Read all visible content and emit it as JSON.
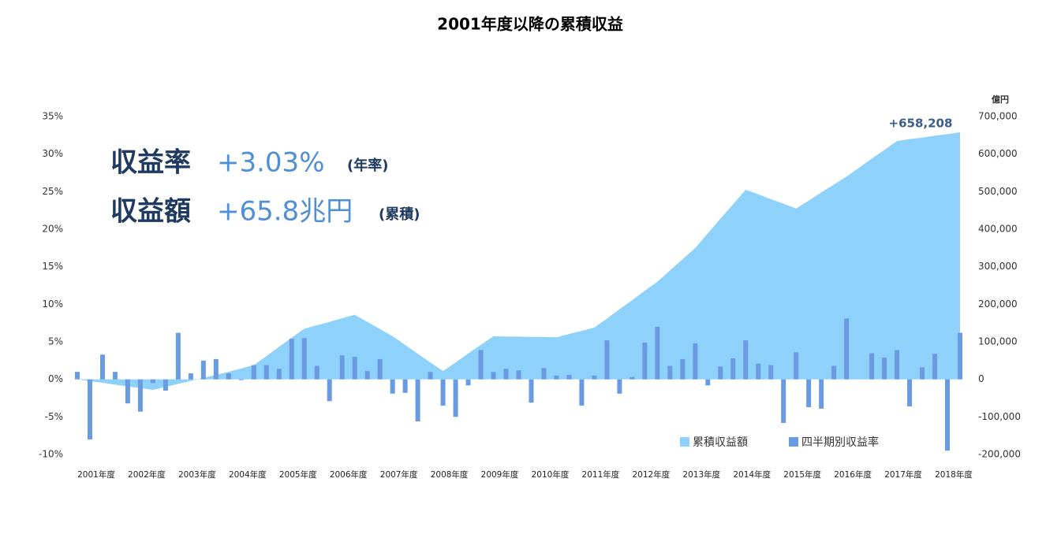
{
  "chart_data": {
    "type": "combo",
    "title": "2001年度以降の累積収益",
    "y2_label": "億円",
    "annotations": [
      "+658,208",
      "収益率",
      "+3.03%",
      "(年率)",
      "収益額",
      "+65.8兆円",
      "(累積)"
    ],
    "categories": [
      "2001年度",
      null,
      null,
      null,
      "2002年度",
      null,
      null,
      null,
      "2003年度",
      null,
      null,
      null,
      "2004年度",
      null,
      null,
      null,
      "2005年度",
      null,
      null,
      null,
      "2006年度",
      null,
      null,
      null,
      "2007年度",
      null,
      null,
      null,
      "2008年度",
      null,
      null,
      null,
      "2009年度",
      null,
      null,
      null,
      "2010年度",
      null,
      null,
      null,
      "2011年度",
      null,
      null,
      null,
      "2012年度",
      null,
      null,
      null,
      "2013年度",
      null,
      null,
      null,
      "2014年度",
      null,
      null,
      null,
      "2015年度",
      null,
      null,
      null,
      "2016年度",
      null,
      null,
      null,
      "2017年度",
      null,
      null,
      null,
      "2018年度",
      null,
      null
    ],
    "series": [
      {
        "name": "累積収益額",
        "type": "area",
        "axis": "y2",
        "color": "#8ed1fb",
        "values": [
          0,
          -5000,
          -9000,
          -14000,
          -19000,
          -23000,
          -28000,
          -20000,
          -12000,
          -4000,
          4000,
          12000,
          20000,
          29000,
          38000,
          62000,
          87000,
          111000,
          135000,
          144000,
          153000,
          163000,
          172000,
          153000,
          134000,
          115000,
          92000,
          68000,
          45000,
          22000,
          45000,
          69000,
          92000,
          115000,
          114000,
          114000,
          113000,
          113000,
          112000,
          121000,
          129000,
          138000,
          162000,
          187000,
          211000,
          236000,
          260000,
          290000,
          320000,
          350000,
          389000,
          428000,
          466000,
          505000,
          493000,
          480000,
          468000,
          455000,
          476000,
          498000,
          519000,
          540000,
          564000,
          588000,
          611000,
          635000,
          640000,
          644000,
          649000,
          653000,
          658208
        ]
      },
      {
        "name": "四半期別収益率",
        "type": "bar",
        "color": "#6a9be0",
        "values": [
          1.0,
          -8.0,
          3.3,
          1.0,
          -3.2,
          -4.3,
          -0.5,
          -1.5,
          6.2,
          0.8,
          2.5,
          2.7,
          0.8,
          -0.1,
          1.9,
          1.9,
          1.4,
          5.4,
          5.5,
          1.8,
          -2.9,
          3.2,
          3.0,
          1.1,
          2.7,
          -1.9,
          -1.8,
          -5.6,
          1.0,
          -3.5,
          -5.0,
          -0.8,
          3.9,
          1.0,
          1.4,
          1.2,
          -3.1,
          1.5,
          0.5,
          0.6,
          -3.5,
          0.5,
          5.2,
          -1.9,
          0.3,
          4.9,
          7.0,
          1.8,
          2.7,
          4.8,
          -0.8,
          1.7,
          2.8,
          5.2,
          2.1,
          1.9,
          -5.8,
          3.6,
          -3.7,
          -3.9,
          1.8,
          8.1,
          0.0,
          3.5,
          2.9,
          3.9,
          -3.6,
          1.6,
          3.4,
          -9.5,
          6.2
        ]
      }
    ],
    "ylim": [
      -10,
      35
    ],
    "yticks": [
      {
        "value": -10,
        "label": "-10%"
      },
      {
        "value": -5,
        "label": "-5%"
      },
      {
        "value": 0,
        "label": "0%"
      },
      {
        "value": 5,
        "label": "5%"
      },
      {
        "value": 10,
        "label": "10%"
      },
      {
        "value": 15,
        "label": "15%"
      },
      {
        "value": 20,
        "label": "20%"
      },
      {
        "value": 25,
        "label": "25%"
      },
      {
        "value": 30,
        "label": "30%"
      },
      {
        "value": 35,
        "label": "35%"
      }
    ],
    "y2lim": [
      -200000,
      700000
    ],
    "y2ticks": [
      {
        "value": -200000,
        "label": "-200,000"
      },
      {
        "value": -100000,
        "label": "-100,000"
      },
      0,
      {
        "value": 100000,
        "label": "100,000"
      },
      {
        "value": 200000,
        "label": "200,000"
      },
      {
        "value": 300000,
        "label": "300,000"
      },
      {
        "value": 400000,
        "label": "400,000"
      },
      {
        "value": 500000,
        "label": "500,000"
      },
      {
        "value": 600000,
        "label": "600,000"
      },
      {
        "value": 700000,
        "label": "700,000"
      }
    ],
    "grid": false
  }
}
